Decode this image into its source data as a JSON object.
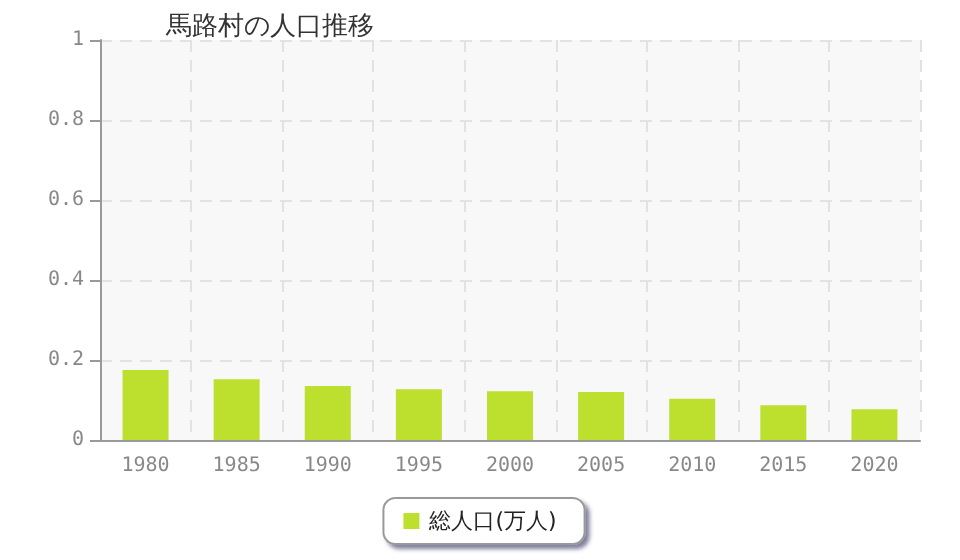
{
  "chart_data": {
    "type": "bar",
    "title": "馬路村の人口推移",
    "categories": [
      "1980",
      "1985",
      "1990",
      "1995",
      "2000",
      "2005",
      "2010",
      "2015",
      "2020"
    ],
    "series": [
      {
        "name": "総人口(万人)",
        "color": "#bde02f",
        "values": [
          0.175,
          0.152,
          0.135,
          0.127,
          0.122,
          0.12,
          0.103,
          0.087,
          0.077
        ]
      }
    ],
    "ylim": [
      0,
      1
    ],
    "yticks": [
      0,
      0.2,
      0.4,
      0.6,
      0.8,
      1
    ],
    "grid": true,
    "legend": "bottom"
  }
}
